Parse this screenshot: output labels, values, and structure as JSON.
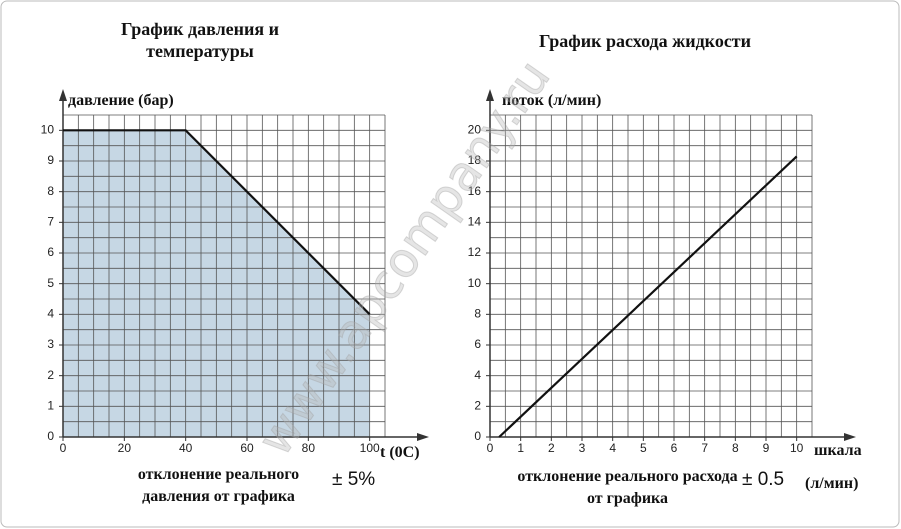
{
  "watermark": "www.apcompany.ru",
  "chart_data": [
    {
      "type": "area",
      "title": "График давления и температуры",
      "ylabel": "давление (бар)",
      "xlabel": "t (0C)",
      "note": "отклонение реального давления от графика",
      "tolerance": "± 5%",
      "x": [
        0,
        40,
        100
      ],
      "values": [
        10,
        10,
        4
      ],
      "color": "#111111",
      "fill": "#c6d7e4",
      "xlim": [
        0,
        105
      ],
      "ylim": [
        0,
        10.5
      ],
      "xticks": [
        0,
        20,
        40,
        60,
        80,
        100
      ],
      "yticks": [
        0,
        1,
        2,
        3,
        4,
        5,
        6,
        7,
        8,
        9,
        10
      ],
      "grid": true,
      "minor_grid": {
        "x": 5,
        "y": 0.5
      }
    },
    {
      "type": "line",
      "title": "График расхода жидкости",
      "ylabel": "поток (л/мин)",
      "xlabel": "шкала",
      "note": "отклонение реального расхода от графика",
      "tolerance": "± 0.5",
      "tolerance_unit": "(л/мин)",
      "x": [
        0.3,
        10
      ],
      "values": [
        0,
        18.3
      ],
      "color": "#111111",
      "xlim": [
        0,
        10.5
      ],
      "ylim": [
        0,
        21
      ],
      "xticks": [
        0,
        1,
        2,
        3,
        4,
        5,
        6,
        7,
        8,
        9,
        10
      ],
      "yticks": [
        0,
        2,
        4,
        6,
        8,
        10,
        12,
        14,
        16,
        18,
        20
      ],
      "grid": true,
      "minor_grid": {
        "x": 0.5,
        "y": 1
      }
    }
  ]
}
